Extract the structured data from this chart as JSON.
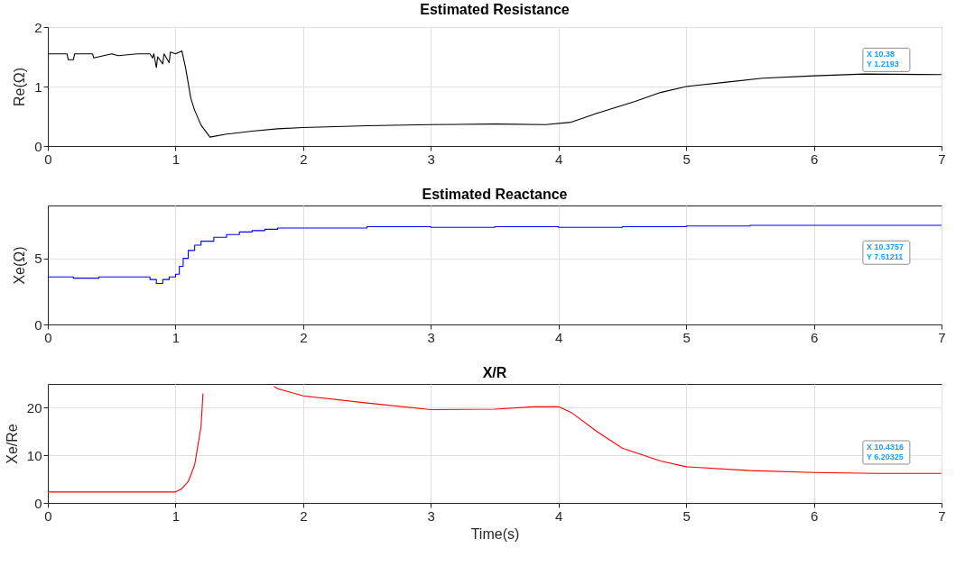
{
  "chart_data": [
    {
      "type": "line",
      "title": "Estimated Resistance",
      "ylabel": "Re(Ω)",
      "color": "#000000",
      "grid": true,
      "x": [
        0,
        0.15,
        0.16,
        0.2,
        0.21,
        0.35,
        0.36,
        0.5,
        0.55,
        0.7,
        0.8,
        0.82,
        0.83,
        0.85,
        0.86,
        0.9,
        0.91,
        0.95,
        0.96,
        1.0,
        1.05,
        1.08,
        1.12,
        1.15,
        1.2,
        1.27,
        1.4,
        1.6,
        1.8,
        2,
        2.5,
        3,
        3.5,
        3.9,
        4.1,
        4.3,
        4.6,
        4.8,
        5,
        5.3,
        5.6,
        6,
        6.4,
        7
      ],
      "values": [
        1.55,
        1.55,
        1.45,
        1.45,
        1.55,
        1.55,
        1.48,
        1.55,
        1.52,
        1.55,
        1.55,
        1.48,
        1.55,
        1.32,
        1.5,
        1.38,
        1.55,
        1.4,
        1.58,
        1.55,
        1.6,
        1.3,
        0.8,
        0.6,
        0.35,
        0.15,
        0.2,
        0.25,
        0.29,
        0.31,
        0.34,
        0.36,
        0.37,
        0.36,
        0.4,
        0.55,
        0.75,
        0.9,
        1.0,
        1.07,
        1.14,
        1.18,
        1.21,
        1.2
      ],
      "xlim": [
        0,
        7
      ],
      "xticks": [
        0,
        1,
        2,
        3,
        4,
        5,
        6,
        7
      ],
      "ylim": [
        0,
        2
      ],
      "yticks": [
        0,
        1,
        2
      ],
      "annotations": [
        "X 10.38\nY 1.2193"
      ]
    },
    {
      "type": "step",
      "title": "Estimated Reactance",
      "ylabel": "Xe(Ω)",
      "color": "#0000ff",
      "grid": true,
      "x": [
        0,
        0.2,
        0.4,
        0.6,
        0.8,
        0.85,
        0.9,
        0.95,
        1.0,
        1.03,
        1.06,
        1.1,
        1.15,
        1.2,
        1.3,
        1.4,
        1.5,
        1.6,
        1.7,
        1.8,
        2,
        2.5,
        3,
        3.5,
        4,
        4.5,
        5,
        5.5,
        6,
        6.5,
        7
      ],
      "values": [
        3.6,
        3.5,
        3.6,
        3.6,
        3.4,
        3.1,
        3.4,
        3.6,
        3.8,
        4.4,
        5.0,
        5.6,
        6.0,
        6.3,
        6.6,
        6.8,
        7.0,
        7.1,
        7.2,
        7.3,
        7.3,
        7.4,
        7.35,
        7.4,
        7.35,
        7.4,
        7.45,
        7.5,
        7.5,
        7.5,
        7.5
      ],
      "xlim": [
        0,
        7
      ],
      "xticks": [
        0,
        1,
        2,
        3,
        4,
        5,
        6,
        7
      ],
      "ylim": [
        0,
        9
      ],
      "yticks": [
        0,
        5
      ],
      "annotations": [
        "X 10.3757\nY 7.51211"
      ]
    },
    {
      "type": "line",
      "title": "X/R",
      "xlabel": "Time(s)",
      "ylabel": "Xe/Re",
      "color": "#ff0000",
      "grid": true,
      "x": [
        0,
        0.5,
        1.0,
        1.05,
        1.1,
        1.15,
        1.2,
        1.215,
        1.23,
        1.77,
        1.8,
        2,
        2.5,
        3,
        3.5,
        3.8,
        4,
        4.1,
        4.3,
        4.5,
        4.8,
        5,
        5.5,
        6,
        6.5,
        7
      ],
      "values": [
        2.3,
        2.3,
        2.3,
        3,
        4.5,
        8,
        16,
        23,
        null,
        24.5,
        24,
        22.5,
        21,
        19.6,
        19.7,
        20.2,
        20.2,
        19,
        15,
        11.5,
        8.8,
        7.6,
        6.8,
        6.4,
        6.2,
        6.2
      ],
      "xlim": [
        0,
        7
      ],
      "xticks": [
        0,
        1,
        2,
        3,
        4,
        5,
        6,
        7
      ],
      "ylim": [
        0,
        25
      ],
      "yticks": [
        0,
        10,
        20
      ],
      "annotations": [
        "X 10.4316\nY 6.20325"
      ]
    }
  ]
}
